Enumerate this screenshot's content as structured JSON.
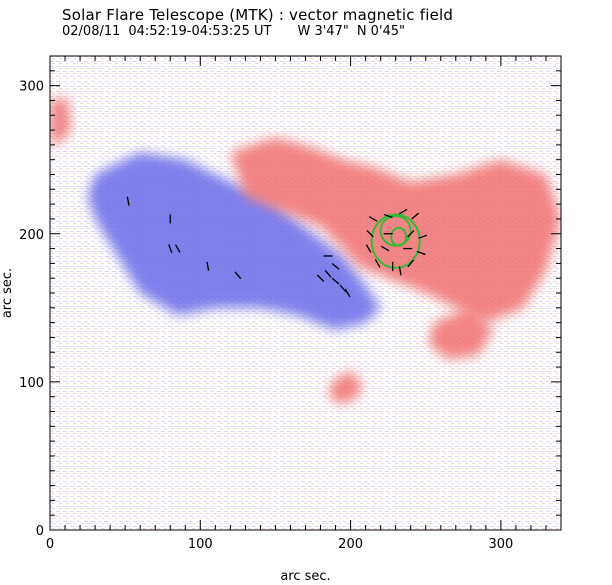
{
  "header": {
    "title": "Solar Flare Telescope (MTK) : vector magnetic field",
    "date": "02/08/11",
    "time_range": "04:52:19-04:53:25 UT",
    "west": "W 3'47\"",
    "north": "N 0'45\""
  },
  "colors": {
    "positive": "#f07070",
    "negative": "#6a6ae8",
    "vectors": "#000000",
    "contour": "#33bb33",
    "background": "#ffffff"
  },
  "chart_data": {
    "type": "heatmap",
    "title": "Solar Flare Telescope (MTK) : vector magnetic field",
    "xlabel": "arc sec.",
    "ylabel": "arc sec.",
    "xlim": [
      0,
      340
    ],
    "ylim": [
      0,
      320
    ],
    "xticks": [
      0,
      100,
      200,
      300
    ],
    "yticks": [
      0,
      100,
      200,
      300
    ],
    "x_minor_step": 10,
    "y_minor_step": 10,
    "grid": false,
    "regions": [
      {
        "polarity": "negative",
        "name": "negative polarity region",
        "points": [
          [
            30,
            240
          ],
          [
            60,
            255
          ],
          [
            90,
            250
          ],
          [
            120,
            235
          ],
          [
            150,
            220
          ],
          [
            175,
            200
          ],
          [
            195,
            185
          ],
          [
            210,
            165
          ],
          [
            220,
            150
          ],
          [
            210,
            140
          ],
          [
            190,
            135
          ],
          [
            165,
            145
          ],
          [
            140,
            150
          ],
          [
            110,
            150
          ],
          [
            85,
            145
          ],
          [
            60,
            160
          ],
          [
            45,
            185
          ],
          [
            30,
            210
          ],
          [
            25,
            225
          ]
        ]
      },
      {
        "polarity": "positive",
        "name": "positive polarity region",
        "points": [
          [
            120,
            255
          ],
          [
            150,
            265
          ],
          [
            175,
            258
          ],
          [
            195,
            250
          ],
          [
            215,
            245
          ],
          [
            240,
            235
          ],
          [
            270,
            240
          ],
          [
            300,
            250
          ],
          [
            330,
            240
          ],
          [
            340,
            210
          ],
          [
            330,
            175
          ],
          [
            315,
            150
          ],
          [
            290,
            140
          ],
          [
            270,
            150
          ],
          [
            250,
            160
          ],
          [
            225,
            170
          ],
          [
            205,
            178
          ],
          [
            195,
            190
          ],
          [
            180,
            205
          ],
          [
            155,
            215
          ],
          [
            130,
            225
          ]
        ]
      },
      {
        "polarity": "positive",
        "name": "positive patch",
        "points": [
          [
            188,
            100
          ],
          [
            200,
            108
          ],
          [
            208,
            98
          ],
          [
            203,
            88
          ],
          [
            192,
            85
          ],
          [
            185,
            92
          ]
        ]
      },
      {
        "polarity": "positive",
        "name": "positive patch",
        "points": [
          [
            0,
            290
          ],
          [
            12,
            292
          ],
          [
            14,
            270
          ],
          [
            5,
            260
          ],
          [
            0,
            262
          ]
        ]
      },
      {
        "polarity": "positive",
        "name": "positive patch",
        "points": [
          [
            255,
            140
          ],
          [
            280,
            150
          ],
          [
            295,
            135
          ],
          [
            285,
            118
          ],
          [
            265,
            115
          ],
          [
            252,
            125
          ]
        ]
      }
    ],
    "vectors": [
      {
        "x": 52,
        "y": 222,
        "angle": 100
      },
      {
        "x": 80,
        "y": 210,
        "angle": 90
      },
      {
        "x": 80,
        "y": 190,
        "angle": 110
      },
      {
        "x": 85,
        "y": 190,
        "angle": 120
      },
      {
        "x": 105,
        "y": 178,
        "angle": 100
      },
      {
        "x": 125,
        "y": 172,
        "angle": 130
      },
      {
        "x": 185,
        "y": 173,
        "angle": 130
      },
      {
        "x": 180,
        "y": 170,
        "angle": 135
      },
      {
        "x": 190,
        "y": 168,
        "angle": 140
      },
      {
        "x": 195,
        "y": 163,
        "angle": 130
      },
      {
        "x": 198,
        "y": 160,
        "angle": 120
      },
      {
        "x": 185,
        "y": 185,
        "angle": 0
      },
      {
        "x": 190,
        "y": 178,
        "angle": 140
      },
      {
        "x": 215,
        "y": 210,
        "angle": 330
      },
      {
        "x": 225,
        "y": 212,
        "angle": 340
      },
      {
        "x": 235,
        "y": 215,
        "angle": 30
      },
      {
        "x": 243,
        "y": 212,
        "angle": 40
      },
      {
        "x": 213,
        "y": 200,
        "angle": 315
      },
      {
        "x": 225,
        "y": 200,
        "angle": 0
      },
      {
        "x": 240,
        "y": 200,
        "angle": 45
      },
      {
        "x": 248,
        "y": 198,
        "angle": 20
      },
      {
        "x": 212,
        "y": 190,
        "angle": 300
      },
      {
        "x": 223,
        "y": 190,
        "angle": 330
      },
      {
        "x": 238,
        "y": 190,
        "angle": 0
      },
      {
        "x": 247,
        "y": 187,
        "angle": 340
      },
      {
        "x": 218,
        "y": 180,
        "angle": 300
      },
      {
        "x": 228,
        "y": 178,
        "angle": 270
      },
      {
        "x": 240,
        "y": 180,
        "angle": 230
      },
      {
        "x": 233,
        "y": 175,
        "angle": 280
      }
    ],
    "contours": [
      {
        "cx": 230,
        "cy": 195,
        "rx": 16,
        "ry": 18
      },
      {
        "cx": 232,
        "cy": 198,
        "rx": 5,
        "ry": 6
      },
      {
        "cx": 230,
        "cy": 202,
        "rx": 10,
        "ry": 10
      }
    ]
  }
}
